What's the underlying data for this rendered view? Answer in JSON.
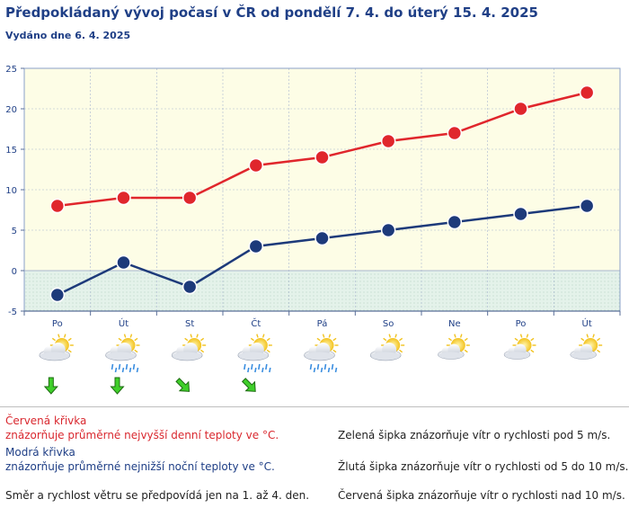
{
  "header": {
    "title": "Předpokládaný vývoj počasí v ČR od pondělí 7. 4. do úterý 15. 4. 2025",
    "subtitle": "Vydáno dne 6. 4. 2025"
  },
  "chart_data": {
    "type": "line",
    "categories": [
      "Po",
      "Út",
      "St",
      "Čt",
      "Pá",
      "So",
      "Ne",
      "Po",
      "Út"
    ],
    "ylim": [
      -5,
      25
    ],
    "yticks": [
      -5,
      0,
      5,
      10,
      15,
      20,
      25
    ],
    "grid": true,
    "series": [
      {
        "key": "max",
        "color": "#e0262c",
        "values": [
          8,
          9,
          9,
          13,
          14,
          16,
          17,
          20,
          22
        ]
      },
      {
        "key": "min",
        "color": "#1d3a7a",
        "values": [
          -3,
          1,
          -2,
          3,
          4,
          5,
          6,
          7,
          8
        ]
      }
    ],
    "colors": {
      "plot_bg": "#fdfde6",
      "below_zero_bg": "#e4f2ea",
      "axis": "#8aa0c8",
      "grid": "#aab7d0"
    }
  },
  "weather_icons": [
    "partly-cloudy-icon",
    "partly-cloudy-rain-icon",
    "partly-cloudy-icon",
    "cloudy-rain-icon",
    "cloudy-rain-icon",
    "partly-cloudy-icon",
    "mostly-sunny-icon",
    "mostly-sunny-icon",
    "mostly-sunny-icon"
  ],
  "rain": [
    false,
    true,
    false,
    true,
    true,
    false,
    false,
    false,
    false
  ],
  "wind": [
    {
      "dir": "down",
      "color": "green"
    },
    {
      "dir": "down",
      "color": "green"
    },
    {
      "dir": "down-right",
      "color": "green"
    },
    {
      "dir": "down-right",
      "color": "green"
    }
  ],
  "legend": {
    "red_title": "Červená křivka",
    "red_desc": "znázorňuje průměrné nejvyšší denní teploty ve °C.",
    "blue_title": "Modrá křivka",
    "blue_desc": "znázorňuje průměrné nejnižší noční teploty ve °C.",
    "wind_note": "Směr a rychlost větru se předpovídá jen na 1. až 4. den.",
    "green_arrow": "Zelená šipka znázorňuje vítr o rychlosti pod 5 m/s.",
    "yellow_arrow": "Žlutá šipka znázorňuje vítr o rychlosti od 5 do 10 m/s.",
    "red_arrow": "Červená šipka znázorňuje vítr o rychlosti nad 10 m/s."
  }
}
